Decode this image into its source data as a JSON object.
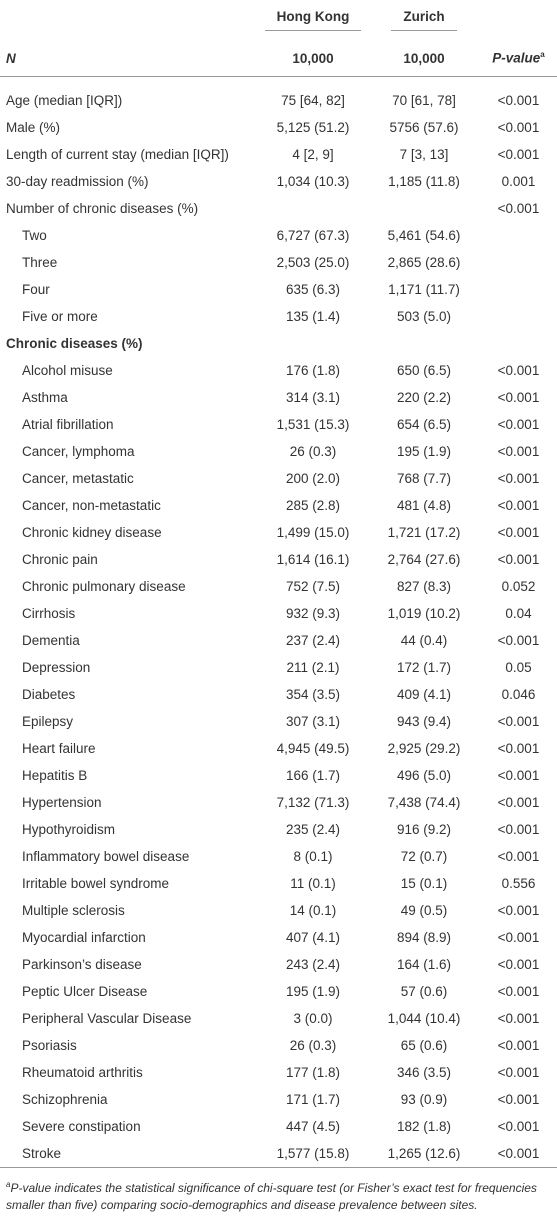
{
  "table": {
    "header": {
      "n_label": "N",
      "hong_kong": "Hong Kong",
      "zurich": "Zurich",
      "hong_kong_n": "10,000",
      "zurich_n": "10,000",
      "p_value": "P-value",
      "p_value_marker": "a"
    },
    "rows": [
      {
        "label": "Age (median [IQR])",
        "hong_kong": "75 [64, 82]",
        "zurich": "70 [61, 78]",
        "p_value": "<0.001"
      },
      {
        "label": "Male (%)",
        "hong_kong": "5,125 (51.2)",
        "zurich": "5756 (57.6)",
        "p_value": "<0.001"
      },
      {
        "label": "Length of current stay (median [IQR])",
        "hong_kong": "4 [2, 9]",
        "zurich": "7 [3, 13]",
        "p_value": "<0.001"
      },
      {
        "label": "30-day readmission (%)",
        "hong_kong": "1,034 (10.3)",
        "zurich": "1,185 (11.8)",
        "p_value": "0.001"
      },
      {
        "label": "Number of chronic diseases (%)",
        "p_value": "<0.001",
        "subrows": [
          {
            "label": "Two",
            "hong_kong": "6,727 (67.3)",
            "zurich": "5,461 (54.6)"
          },
          {
            "label": "Three",
            "hong_kong": "2,503 (25.0)",
            "zurich": "2,865 (28.6)"
          },
          {
            "label": "Four",
            "hong_kong": "635 (6.3)",
            "zurich": "1,171 (11.7)"
          },
          {
            "label": "Five or more",
            "hong_kong": "135 (1.4)",
            "zurich": "503 (5.0)"
          }
        ]
      }
    ],
    "section": {
      "title": "Chronic diseases (%)",
      "rows": [
        {
          "label": "Alcohol misuse",
          "hong_kong": "176 (1.8)",
          "zurich": "650 (6.5)",
          "p_value": "<0.001"
        },
        {
          "label": "Asthma",
          "hong_kong": "314 (3.1)",
          "zurich": "220 (2.2)",
          "p_value": "<0.001"
        },
        {
          "label": "Atrial fibrillation",
          "hong_kong": "1,531 (15.3)",
          "zurich": "654 (6.5)",
          "p_value": "<0.001"
        },
        {
          "label": "Cancer, lymphoma",
          "hong_kong": "26 (0.3)",
          "zurich": "195 (1.9)",
          "p_value": "<0.001"
        },
        {
          "label": "Cancer, metastatic",
          "hong_kong": "200 (2.0)",
          "zurich": "768 (7.7)",
          "p_value": "<0.001"
        },
        {
          "label": "Cancer, non-metastatic",
          "hong_kong": "285 (2.8)",
          "zurich": "481 (4.8)",
          "p_value": "<0.001"
        },
        {
          "label": "Chronic kidney disease",
          "hong_kong": "1,499 (15.0)",
          "zurich": "1,721 (17.2)",
          "p_value": "<0.001"
        },
        {
          "label": "Chronic pain",
          "hong_kong": "1,614 (16.1)",
          "zurich": "2,764 (27.6)",
          "p_value": "<0.001"
        },
        {
          "label": "Chronic pulmonary disease",
          "hong_kong": "752 (7.5)",
          "zurich": "827 (8.3)",
          "p_value": "0.052"
        },
        {
          "label": "Cirrhosis",
          "hong_kong": "932 (9.3)",
          "zurich": "1,019 (10.2)",
          "p_value": "0.04"
        },
        {
          "label": "Dementia",
          "hong_kong": "237 (2.4)",
          "zurich": "44 (0.4)",
          "p_value": "<0.001"
        },
        {
          "label": "Depression",
          "hong_kong": "211 (2.1)",
          "zurich": "172 (1.7)",
          "p_value": "0.05"
        },
        {
          "label": "Diabetes",
          "hong_kong": "354 (3.5)",
          "zurich": "409 (4.1)",
          "p_value": "0.046"
        },
        {
          "label": "Epilepsy",
          "hong_kong": "307 (3.1)",
          "zurich": "943 (9.4)",
          "p_value": "<0.001"
        },
        {
          "label": "Heart failure",
          "hong_kong": "4,945 (49.5)",
          "zurich": "2,925 (29.2)",
          "p_value": "<0.001"
        },
        {
          "label": "Hepatitis B",
          "hong_kong": "166 (1.7)",
          "zurich": "496 (5.0)",
          "p_value": "<0.001"
        },
        {
          "label": "Hypertension",
          "hong_kong": "7,132 (71.3)",
          "zurich": "7,438 (74.4)",
          "p_value": "<0.001"
        },
        {
          "label": "Hypothyroidism",
          "hong_kong": "235 (2.4)",
          "zurich": "916 (9.2)",
          "p_value": "<0.001"
        },
        {
          "label": "Inflammatory bowel disease",
          "hong_kong": "8 (0.1)",
          "zurich": "72 (0.7)",
          "p_value": "<0.001"
        },
        {
          "label": "Irritable bowel syndrome",
          "hong_kong": "11 (0.1)",
          "zurich": "15 (0.1)",
          "p_value": "0.556"
        },
        {
          "label": "Multiple sclerosis",
          "hong_kong": "14 (0.1)",
          "zurich": "49 (0.5)",
          "p_value": "<0.001"
        },
        {
          "label": "Myocardial infarction",
          "hong_kong": "407 (4.1)",
          "zurich": "894 (8.9)",
          "p_value": "<0.001"
        },
        {
          "label": "Parkinson’s disease",
          "hong_kong": "243 (2.4)",
          "zurich": "164 (1.6)",
          "p_value": "<0.001"
        },
        {
          "label": "Peptic Ulcer Disease",
          "hong_kong": "195 (1.9)",
          "zurich": "57 (0.6)",
          "p_value": "<0.001"
        },
        {
          "label": "Peripheral Vascular Disease",
          "hong_kong": "3 (0.0)",
          "zurich": "1,044 (10.4)",
          "p_value": "<0.001"
        },
        {
          "label": "Psoriasis",
          "hong_kong": "26 (0.3)",
          "zurich": "65 (0.6)",
          "p_value": "<0.001"
        },
        {
          "label": "Rheumatoid arthritis",
          "hong_kong": "177 (1.8)",
          "zurich": "346 (3.5)",
          "p_value": "<0.001"
        },
        {
          "label": "Schizophrenia",
          "hong_kong": "171 (1.7)",
          "zurich": "93 (0.9)",
          "p_value": "<0.001"
        },
        {
          "label": "Severe constipation",
          "hong_kong": "447 (4.5)",
          "zurich": "182 (1.8)",
          "p_value": "<0.001"
        },
        {
          "label": "Stroke",
          "hong_kong": "1,577 (15.8)",
          "zurich": "1,265 (12.6)",
          "p_value": "<0.001"
        }
      ]
    },
    "footnote": {
      "marker": "a",
      "term": "P-value",
      "text": "indicates the statistical significance of chi-square test (or Fisher’s exact test for frequencies smaller than five) comparing socio-demographics and disease prevalence between sites."
    }
  }
}
